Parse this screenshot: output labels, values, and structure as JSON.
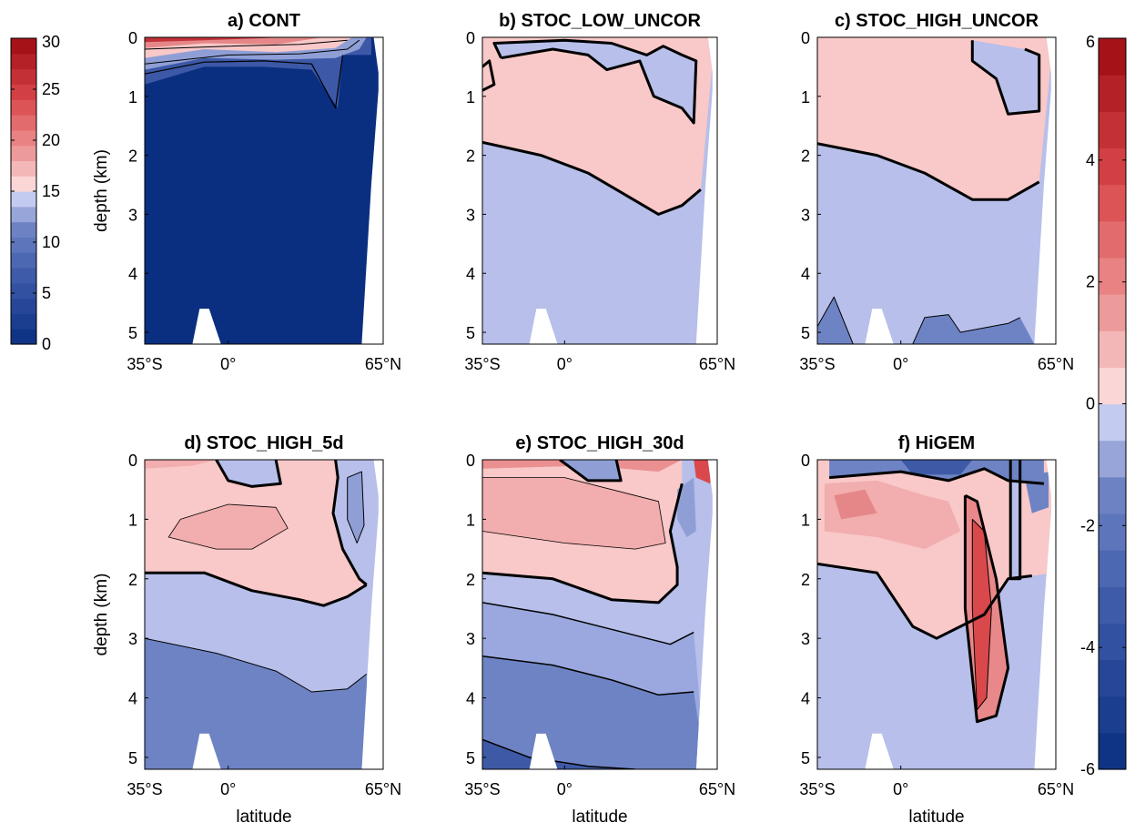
{
  "chart_data": {
    "type": "heatmap",
    "grid": false,
    "shared_x": {
      "ticks": [
        {
          "deg": 35,
          "hem": "S",
          "label": "35°S"
        },
        {
          "deg": 0,
          "hem": "",
          "label": "0°"
        },
        {
          "deg": 65,
          "hem": "N",
          "label": "65°N"
        }
      ],
      "label": "latitude",
      "range": [
        -35,
        65
      ]
    },
    "shared_y": {
      "label": "depth (km)",
      "ticks": [
        "0",
        "1",
        "2",
        "3",
        "4",
        "5"
      ],
      "range": [
        0,
        5.2
      ],
      "inverted": true
    },
    "colorbars": [
      {
        "id": "left",
        "applies_to": "a) CONT",
        "range": [
          0,
          30
        ],
        "ticks": [
          "0",
          "5",
          "10",
          "15",
          "20",
          "25",
          "30"
        ],
        "colormap": "blue-white-red",
        "levels": 20
      },
      {
        "id": "right",
        "applies_to": "b) to f)",
        "range": [
          -6,
          6
        ],
        "ticks": [
          "-6",
          "-4",
          "-2",
          "0",
          "2",
          "4",
          "6"
        ],
        "colormap": "blue-white-red",
        "levels": 20
      }
    ],
    "colors": {
      "deep_blue": "#0a2f80",
      "mid_blue": "#6e83c4",
      "light_blue": "#b7bfea",
      "light_red": "#f9c8c8",
      "mid_red": "#ee9c9c",
      "deep_red": "#9e0a10"
    },
    "panels": [
      {
        "title": "a) CONT",
        "show_ylabel": true,
        "show_xlabel": false,
        "description_values": {
          "interior_value": 0,
          "surface_max_value": 25
        },
        "contour_lines_km": [
          [
            [
              -35,
              0.62
            ],
            [
              -10,
              0.42
            ],
            [
              15,
              0.4
            ],
            [
              35,
              0.45
            ],
            [
              45,
              1.2
            ],
            [
              48,
              0.3
            ]
          ]
        ],
        "bands": [
          {
            "level": 15,
            "boundary": [
              [
                -35,
                0.45
              ],
              [
                0,
                0.3
              ],
              [
                30,
                0.28
              ],
              [
                50,
                0.2
              ],
              [
                55,
                0.05
              ]
            ]
          },
          {
            "level": 20,
            "boundary": [
              [
                -35,
                0.2
              ],
              [
                0,
                0.15
              ],
              [
                30,
                0.12
              ],
              [
                50,
                0.05
              ]
            ]
          }
        ]
      },
      {
        "title": "b) STOC_LOW_UNCOR",
        "show_ylabel": false,
        "show_xlabel": false,
        "zero_contour_km": [
          [
            -35,
            1.78
          ],
          [
            -10,
            2.0
          ],
          [
            10,
            2.3
          ],
          [
            25,
            2.65
          ],
          [
            40,
            3.0
          ],
          [
            50,
            2.85
          ],
          [
            58,
            2.58
          ]
        ],
        "upper_negative_patch": [
          [
            -27,
            0.35
          ],
          [
            -5,
            0.2
          ],
          [
            10,
            0.3
          ],
          [
            18,
            0.55
          ],
          [
            32,
            0.4
          ],
          [
            38,
            1.0
          ],
          [
            50,
            1.2
          ],
          [
            55,
            1.45
          ],
          [
            56,
            0.4
          ],
          [
            50,
            0.3
          ],
          [
            42,
            0.15
          ],
          [
            35,
            0.3
          ],
          [
            20,
            0.1
          ],
          [
            0,
            0.05
          ],
          [
            -30,
            0.1
          ]
        ]
      },
      {
        "title": "c) STOC_HIGH_UNCOR",
        "show_ylabel": false,
        "show_xlabel": false,
        "zero_contour_km": [
          [
            -35,
            1.8
          ],
          [
            -10,
            2.0
          ],
          [
            10,
            2.3
          ],
          [
            30,
            2.75
          ],
          [
            45,
            2.75
          ],
          [
            58,
            2.45
          ]
        ],
        "upper_negative_patch": [
          [
            30,
            0.05
          ],
          [
            30,
            0.4
          ],
          [
            40,
            0.7
          ],
          [
            45,
            1.3
          ],
          [
            58,
            1.25
          ],
          [
            58,
            0.3
          ],
          [
            52,
            0.2
          ]
        ],
        "deep_negative_patch": [
          [
            -35,
            4.9
          ],
          [
            -28,
            4.4
          ],
          [
            -20,
            5.2
          ],
          [
            5,
            5.2
          ],
          [
            10,
            4.75
          ],
          [
            20,
            4.7
          ],
          [
            25,
            5.0
          ],
          [
            45,
            4.85
          ],
          [
            50,
            4.75
          ]
        ]
      },
      {
        "title": "d) STOC_HIGH_5d",
        "show_ylabel": true,
        "show_xlabel": true,
        "zero_contour_km": [
          [
            -35,
            1.9
          ],
          [
            -10,
            1.9
          ],
          [
            10,
            2.2
          ],
          [
            30,
            2.35
          ],
          [
            40,
            2.45
          ],
          [
            50,
            2.3
          ],
          [
            58,
            2.1
          ]
        ],
        "deep_contour_km": [
          [
            -35,
            3.0
          ],
          [
            -5,
            3.25
          ],
          [
            20,
            3.55
          ],
          [
            35,
            3.9
          ],
          [
            50,
            3.85
          ],
          [
            58,
            3.6
          ]
        ],
        "positive_core": [
          [
            -20,
            1.0
          ],
          [
            0,
            0.75
          ],
          [
            20,
            0.8
          ],
          [
            25,
            1.15
          ],
          [
            10,
            1.5
          ],
          [
            -5,
            1.5
          ],
          [
            -25,
            1.3
          ]
        ]
      },
      {
        "title": "e) STOC_HIGH_30d",
        "show_ylabel": false,
        "show_xlabel": true,
        "zero_contour_km": [
          [
            -35,
            1.9
          ],
          [
            -5,
            2.0
          ],
          [
            20,
            2.35
          ],
          [
            40,
            2.4
          ],
          [
            48,
            2.1
          ],
          [
            48,
            1.8
          ],
          [
            45,
            1.2
          ],
          [
            50,
            0.4
          ]
        ],
        "deep_contours_km": [
          [
            [
              -35,
              2.4
            ],
            [
              -5,
              2.6
            ],
            [
              20,
              2.85
            ],
            [
              45,
              3.1
            ],
            [
              55,
              2.9
            ]
          ],
          [
            [
              -35,
              3.3
            ],
            [
              -5,
              3.45
            ],
            [
              20,
              3.7
            ],
            [
              40,
              3.95
            ],
            [
              55,
              3.9
            ]
          ],
          [
            [
              -35,
              4.7
            ],
            [
              -15,
              5.0
            ],
            [
              10,
              5.15
            ],
            [
              30,
              5.2
            ]
          ]
        ]
      },
      {
        "title": "f) HiGEM",
        "show_ylabel": false,
        "show_xlabel": true,
        "zero_contour_km": [
          [
            -35,
            1.75
          ],
          [
            -10,
            1.9
          ],
          [
            0,
            2.5
          ],
          [
            5,
            2.8
          ],
          [
            15,
            3.0
          ],
          [
            25,
            2.8
          ],
          [
            35,
            2.6
          ],
          [
            45,
            2.0
          ],
          [
            55,
            1.95
          ]
        ],
        "column_positive": [
          [
            27,
            0.6
          ],
          [
            32,
            0.7
          ],
          [
            40,
            2.0
          ],
          [
            45,
            3.5
          ],
          [
            40,
            4.3
          ],
          [
            32,
            4.4
          ],
          [
            27,
            2.5
          ]
        ],
        "surface_negative": [
          [
            -30,
            0.0
          ],
          [
            60,
            0.0
          ],
          [
            60,
            0.4
          ],
          [
            45,
            0.35
          ],
          [
            35,
            0.15
          ],
          [
            20,
            0.35
          ],
          [
            0,
            0.2
          ],
          [
            -30,
            0.3
          ]
        ]
      }
    ]
  }
}
